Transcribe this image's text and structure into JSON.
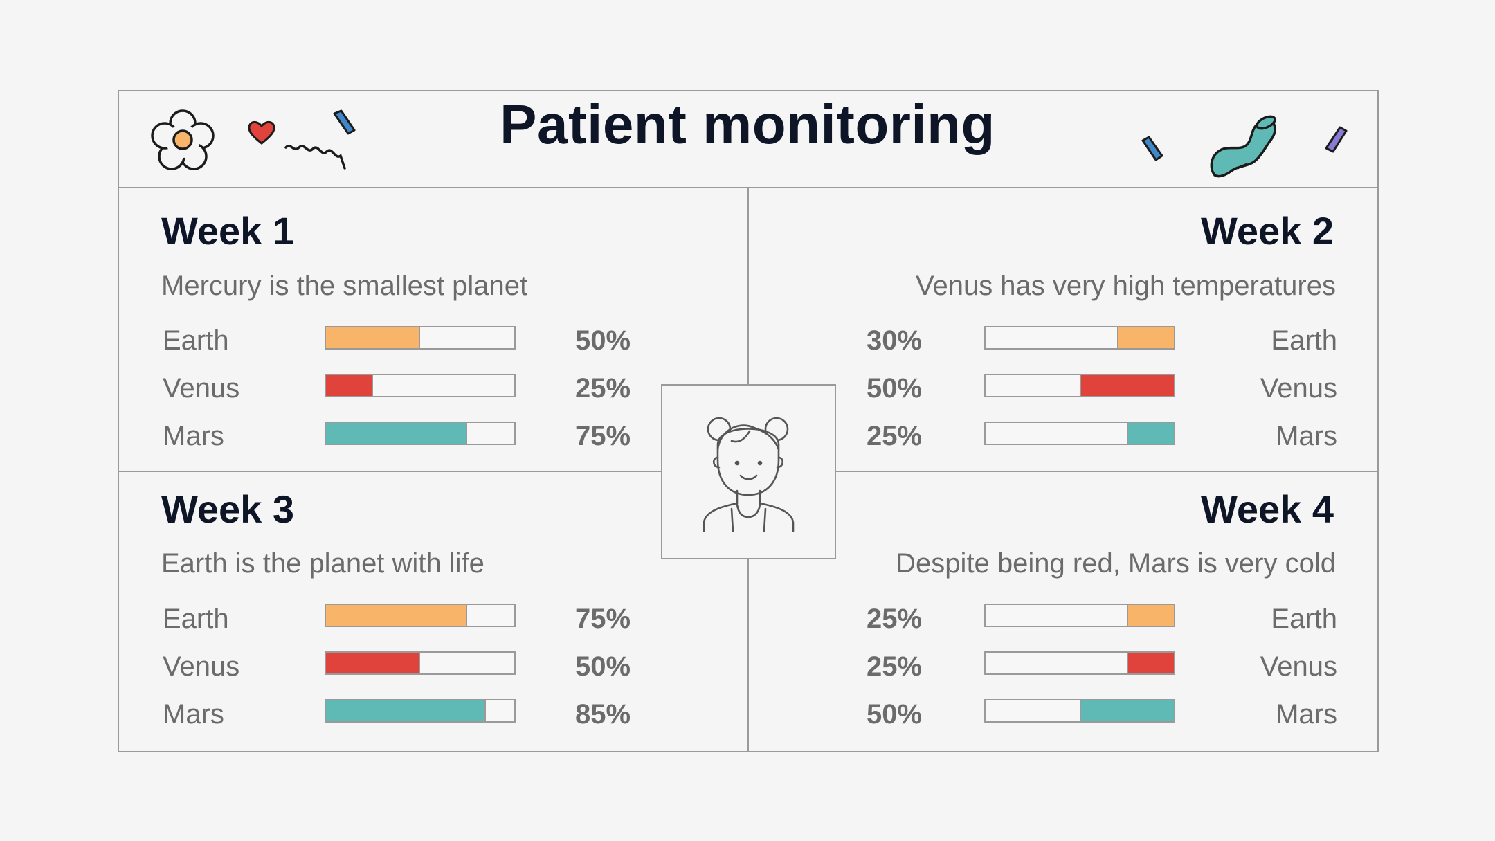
{
  "title": "Patient monitoring",
  "colors": {
    "earth": "#f8b469",
    "venus": "#df433b",
    "mars": "#5fbab5",
    "line": "#9a9a9a",
    "heading": "#0e1526",
    "text": "#6b6b6b"
  },
  "icons": [
    "flower-icon",
    "heart-icon",
    "squiggle-icon",
    "confetti-icon",
    "tube-icon",
    "patient-avatar-icon"
  ],
  "weeks": [
    {
      "title": "Week 1",
      "subtitle": "Mercury is the smallest planet",
      "rows": [
        {
          "label": "Earth",
          "value": 50,
          "display": "50%"
        },
        {
          "label": "Venus",
          "value": 25,
          "display": "25%"
        },
        {
          "label": "Mars",
          "value": 75,
          "display": "75%"
        }
      ]
    },
    {
      "title": "Week 2",
      "subtitle": "Venus has very high temperatures",
      "rows": [
        {
          "label": "Earth",
          "value": 30,
          "display": "30%"
        },
        {
          "label": "Venus",
          "value": 50,
          "display": "50%"
        },
        {
          "label": "Mars",
          "value": 25,
          "display": "25%"
        }
      ]
    },
    {
      "title": "Week 3",
      "subtitle": "Earth is the planet with life",
      "rows": [
        {
          "label": "Earth",
          "value": 75,
          "display": "75%"
        },
        {
          "label": "Venus",
          "value": 50,
          "display": "50%"
        },
        {
          "label": "Mars",
          "value": 85,
          "display": "85%"
        }
      ]
    },
    {
      "title": "Week 4",
      "subtitle": "Despite being red, Mars is very cold",
      "rows": [
        {
          "label": "Earth",
          "value": 25,
          "display": "25%"
        },
        {
          "label": "Venus",
          "value": 25,
          "display": "25%"
        },
        {
          "label": "Mars",
          "value": 50,
          "display": "50%"
        }
      ]
    }
  ]
}
